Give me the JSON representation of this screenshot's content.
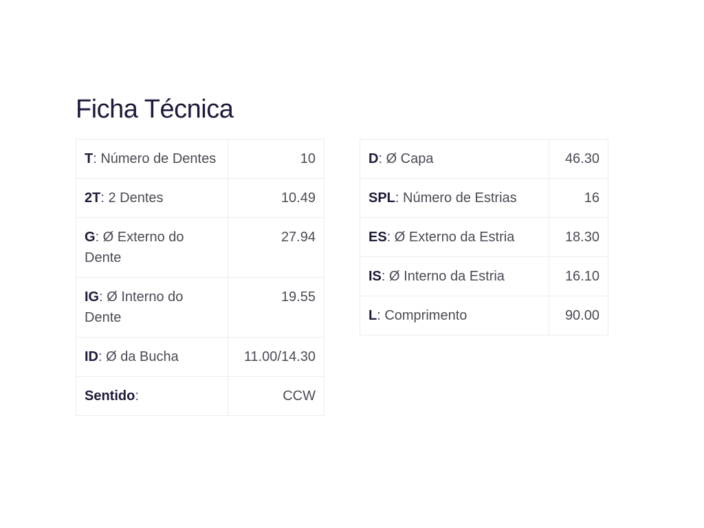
{
  "title": "Ficha Técnica",
  "left_table": [
    {
      "code": "T",
      "label": ": Número de Dentes",
      "value": "10"
    },
    {
      "code": "2T",
      "label": ": 2 Dentes",
      "value": "10.49"
    },
    {
      "code": "G",
      "label": ": Ø Externo do Dente",
      "value": "27.94"
    },
    {
      "code": "IG",
      "label": ": Ø Interno do Dente",
      "value": "19.55"
    },
    {
      "code": "ID",
      "label": ": Ø da Bucha",
      "value": "11.00/14.30"
    },
    {
      "code": "Sentido",
      "label": ":",
      "value": "CCW"
    }
  ],
  "right_table": [
    {
      "code": "D",
      "label": ": Ø Capa",
      "value": "46.30"
    },
    {
      "code": "SPL",
      "label": ": Número de Estrias",
      "value": "16"
    },
    {
      "code": "ES",
      "label": ": Ø Externo da Estria",
      "value": "18.30"
    },
    {
      "code": "IS",
      "label": ": Ø Interno da Estria",
      "value": "16.10"
    },
    {
      "code": "L",
      "label": ": Comprimento",
      "value": "90.00"
    }
  ]
}
